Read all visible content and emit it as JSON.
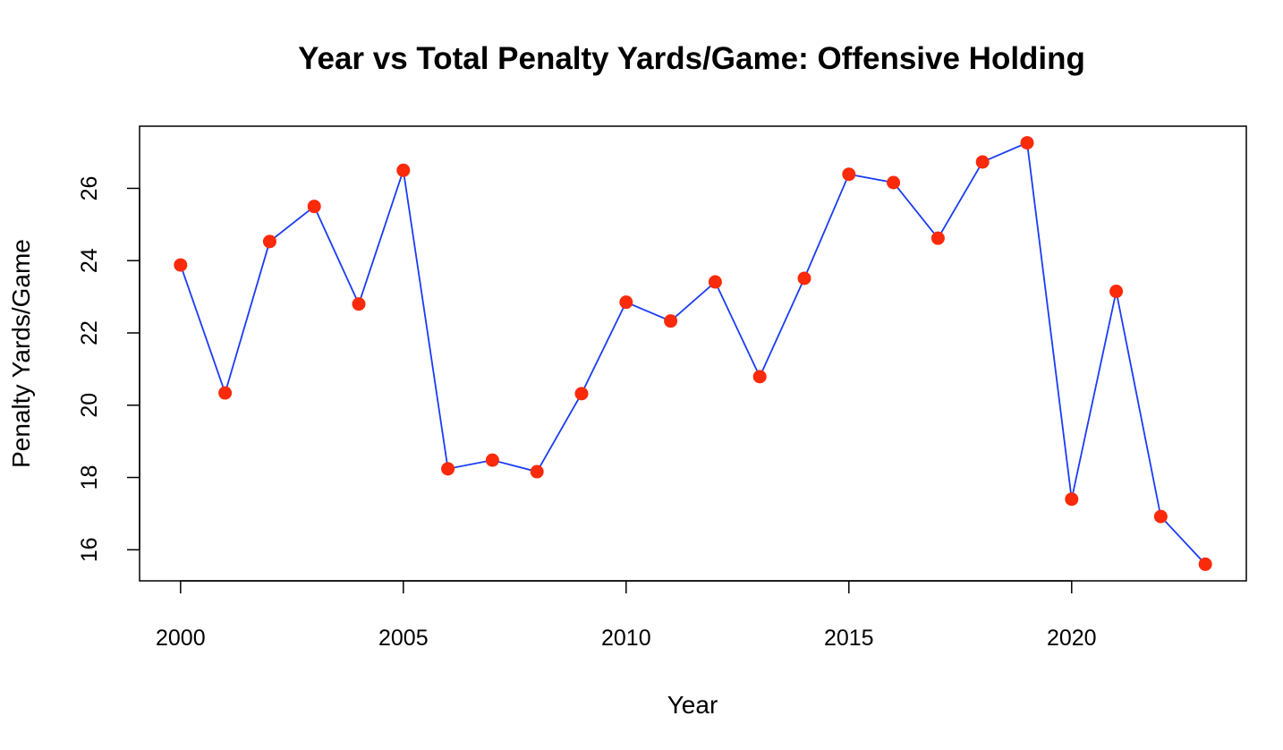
{
  "chart_data": {
    "type": "line",
    "title": "Year vs Total Penalty Yards/Game: Offensive Holding",
    "xlabel": "Year",
    "ylabel": "Penalty Yards/Game",
    "x": [
      2000,
      2001,
      2002,
      2003,
      2004,
      2005,
      2006,
      2007,
      2008,
      2009,
      2010,
      2011,
      2012,
      2013,
      2014,
      2015,
      2016,
      2017,
      2018,
      2019,
      2020,
      2021,
      2022,
      2023
    ],
    "series": [
      {
        "values": [
          23.88,
          20.34,
          24.53,
          25.5,
          22.8,
          26.5,
          18.24,
          18.48,
          18.16,
          20.32,
          22.85,
          22.33,
          23.41,
          20.79,
          23.51,
          26.39,
          26.16,
          24.62,
          26.73,
          27.26,
          17.4,
          23.15,
          16.92,
          15.6
        ],
        "line_color": "#1a3cf5",
        "marker_color": "#fa2a0a"
      }
    ],
    "xticks": [
      2000,
      2005,
      2010,
      2015,
      2020
    ],
    "yticks": [
      16,
      18,
      20,
      22,
      24,
      26
    ],
    "xlim": [
      1999.08,
      2023.92
    ],
    "ylim": [
      15.14,
      27.72
    ],
    "grid": false,
    "legend": "none"
  }
}
